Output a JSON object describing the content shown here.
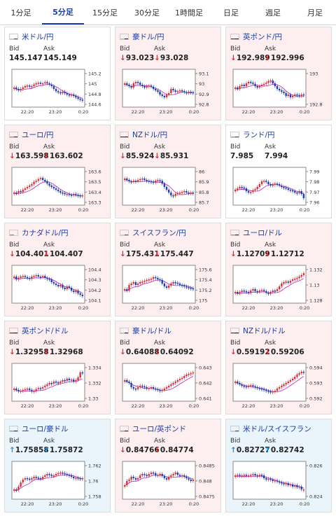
{
  "tabs": [
    {
      "label": "1分足",
      "active": false
    },
    {
      "label": "5分足",
      "active": true
    },
    {
      "label": "15分足",
      "active": false
    },
    {
      "label": "30分足",
      "active": false
    },
    {
      "label": "1時間足",
      "active": false
    },
    {
      "label": "日足",
      "active": false
    },
    {
      "label": "週足",
      "active": false
    },
    {
      "label": "月足",
      "active": false
    }
  ],
  "labels": {
    "bid": "Bid",
    "ask": "Ask"
  },
  "colors": {
    "up": "#d9303a",
    "down": "#1e3fb0",
    "ma": "#c020c0",
    "arrow_down": "#d9303a",
    "arrow_up": "#1f8fd8"
  },
  "cards": [
    {
      "name": "米ドル/円",
      "flag": "us-jp-flag",
      "bg": "white",
      "bid": "145.147",
      "ask": "145.149",
      "trend": "none",
      "yticks": [
        "145.2",
        "145",
        "144.8",
        "144.6"
      ],
      "xticks": [
        "22:20",
        "23:20",
        "0:20"
      ]
    },
    {
      "name": "豪ドル/円",
      "flag": "au-jp-flag",
      "bg": "red",
      "bid": "93.023",
      "ask": "93.028",
      "trend": "down",
      "yticks": [
        "93.1",
        "93",
        "92.9",
        "92.8"
      ],
      "xticks": [
        "22:20",
        "23:20",
        "0:20"
      ]
    },
    {
      "name": "英ポンド/円",
      "flag": "gb-jp-flag",
      "bg": "red",
      "bid": "192.989",
      "ask": "192.996",
      "trend": "down",
      "yticks": [
        "193",
        "192.8"
      ],
      "xticks": [
        "22:20",
        "23:20",
        "0:20"
      ]
    },
    {
      "name": "ユーロ/円",
      "flag": "eu-jp-flag",
      "bg": "red",
      "bid": "163.598",
      "ask": "163.602",
      "trend": "down",
      "yticks": [
        "163.6",
        "163.5",
        "163.4",
        "163.3"
      ],
      "xticks": [
        "22:20",
        "23:20",
        "0:20"
      ]
    },
    {
      "name": "NZドル/円",
      "flag": "nz-jp-flag",
      "bg": "red",
      "bid": "85.924",
      "ask": "85.931",
      "trend": "down",
      "yticks": [
        "86",
        "85.9",
        "85.8",
        "85.7"
      ],
      "xticks": [
        "22:20",
        "23:20",
        "0:20"
      ]
    },
    {
      "name": "ランド/円",
      "flag": "za-jp-flag",
      "bg": "white",
      "bid": "7.985",
      "ask": "7.994",
      "trend": "none",
      "yticks": [
        "7.99",
        "7.98",
        "7.97",
        "7.96"
      ],
      "xticks": [
        "22:20",
        "23:20",
        "0:20"
      ]
    },
    {
      "name": "カナダドル/円",
      "flag": "ca-jp-flag",
      "bg": "red",
      "bid": "104.401",
      "ask": "104.407",
      "trend": "down",
      "yticks": [
        "104.4",
        "104.3",
        "104.2",
        "104.1"
      ],
      "xticks": [
        "22:20",
        "23:20",
        "0:20"
      ]
    },
    {
      "name": "スイスフラン/円",
      "flag": "ch-jp-flag",
      "bg": "red",
      "bid": "175.431",
      "ask": "175.447",
      "trend": "down",
      "yticks": [
        "175.6",
        "175.4",
        "175.2",
        "175"
      ],
      "xticks": [
        "22:20",
        "23:20",
        "0:20"
      ]
    },
    {
      "name": "ユーロ/ドル",
      "flag": "eu-us-flag",
      "bg": "red",
      "bid": "1.12709",
      "ask": "1.12712",
      "trend": "down",
      "yticks": [
        "1.132",
        "1.13",
        "1.128"
      ],
      "xticks": [
        "22:20",
        "23:20",
        "0:20"
      ]
    },
    {
      "name": "英ポンド/ドル",
      "flag": "gb-us-flag",
      "bg": "red",
      "bid": "1.32958",
      "ask": "1.32968",
      "trend": "down",
      "yticks": [
        "1.334",
        "1.332",
        "1.33"
      ],
      "xticks": [
        "22:20",
        "23:20",
        "0:20"
      ]
    },
    {
      "name": "豪ドル/ドル",
      "flag": "au-us-flag",
      "bg": "red",
      "bid": "0.64088",
      "ask": "0.64092",
      "trend": "down",
      "yticks": [
        "0.643",
        "0.642",
        "0.641"
      ],
      "xticks": [
        "22:20",
        "23:20",
        "0:20"
      ]
    },
    {
      "name": "NZドル/ドル",
      "flag": "nz-us-flag",
      "bg": "red",
      "bid": "0.59192",
      "ask": "0.59206",
      "trend": "down",
      "yticks": [
        "0.594",
        "0.593",
        "0.592"
      ],
      "xticks": [
        "22:20",
        "23:20",
        "0:20"
      ]
    },
    {
      "name": "ユーロ/豪ドル",
      "flag": "eu-au-flag",
      "bg": "blue",
      "bid": "1.75858",
      "ask": "1.75872",
      "trend": "up",
      "yticks": [
        "1.762",
        "1.76",
        "1.758"
      ],
      "xticks": [
        "22:20",
        "23:20",
        "0:20"
      ]
    },
    {
      "name": "ユーロ/英ポンド",
      "flag": "eu-gb-flag",
      "bg": "red",
      "bid": "0.84766",
      "ask": "0.84774",
      "trend": "down",
      "yticks": [
        "0.8485",
        "0.848",
        "0.8475"
      ],
      "xticks": [
        "22:20",
        "23:20",
        "0:20"
      ]
    },
    {
      "name": "米ドル/スイスフラン",
      "flag": "us-ch-flag",
      "bg": "blue",
      "bid": "0.82727",
      "ask": "0.82742",
      "trend": "up",
      "yticks": [
        "0.826",
        "0.824"
      ],
      "xticks": [
        "22:20",
        "23:20",
        "0:20"
      ]
    }
  ]
}
